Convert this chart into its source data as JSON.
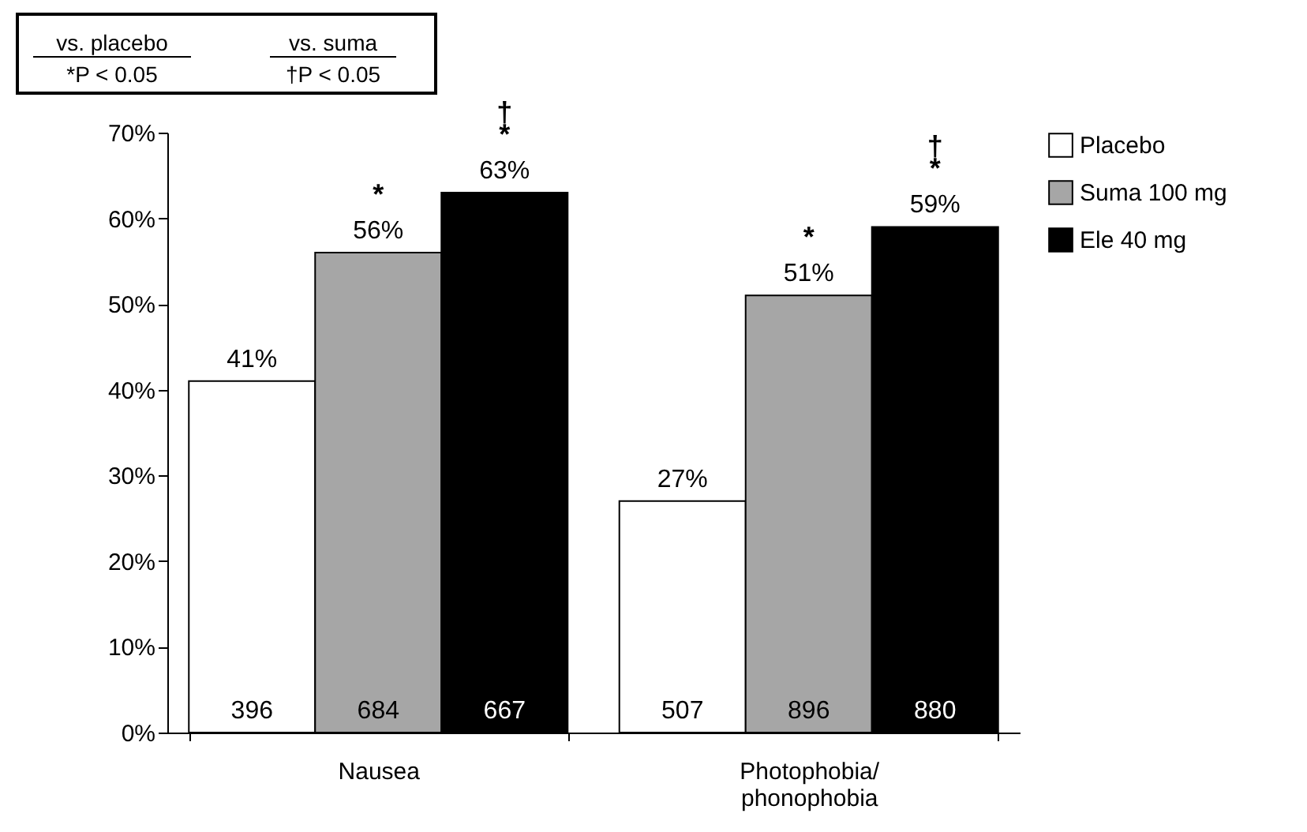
{
  "chart_data": {
    "type": "bar",
    "categories": [
      "Nausea",
      "Photophobia/ phonophobia"
    ],
    "series": [
      {
        "name": "Placebo",
        "color": "#ffffff",
        "values": [
          41,
          27
        ],
        "value_labels": [
          "41%",
          "27%"
        ]
      },
      {
        "name": "Suma 100 mg",
        "color": "#a6a6a6",
        "values": [
          56,
          51
        ],
        "value_labels": [
          "56%",
          "51%"
        ]
      },
      {
        "name": "Ele 40 mg",
        "color": "#000000",
        "values": [
          63,
          59
        ],
        "value_labels": [
          "63%",
          "59%"
        ]
      }
    ],
    "ylim": [
      0,
      70
    ],
    "yticks": [
      {
        "value": 0,
        "label": "0%"
      },
      {
        "value": 10,
        "label": "10%"
      },
      {
        "value": 20,
        "label": "20%"
      },
      {
        "value": 30,
        "label": "30%"
      },
      {
        "value": 40,
        "label": "40%"
      },
      {
        "value": 50,
        "label": "50%"
      },
      {
        "value": 60,
        "label": "60%"
      },
      {
        "value": 70,
        "label": "70%"
      }
    ],
    "legend": "top right",
    "grid": false,
    "annotations": [
      "vs. placebo",
      "vs. suma",
      "*P < 0.05",
      "†P < 0.05",
      "396",
      "507",
      "684",
      "896",
      "667",
      "880",
      "*",
      "*",
      "*",
      "*",
      "†",
      "†"
    ]
  }
}
